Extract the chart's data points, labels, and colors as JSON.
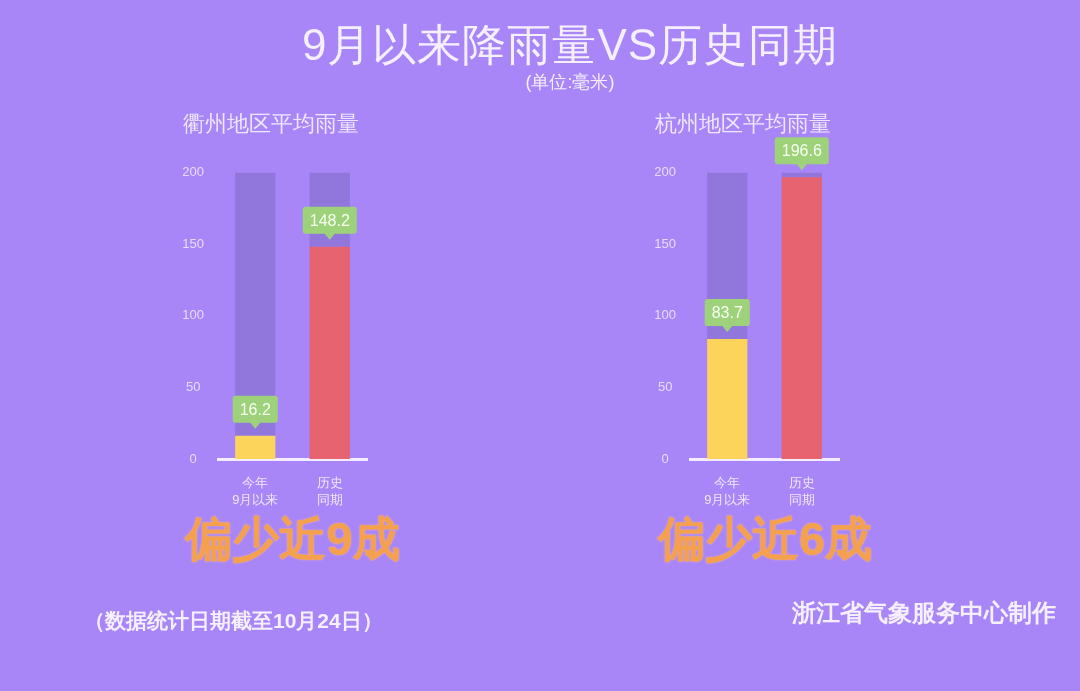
{
  "chart_data": [
    {
      "type": "other",
      "title": "9月以来降雨量VS历史同期",
      "subtitle": "(单位:毫米)"
    },
    {
      "type": "bar",
      "title": "衢州地区平均雨量",
      "categories": [
        "今年9月以来",
        "历史同期"
      ],
      "stacked": true,
      "series": [
        {
          "colors": [
            "#fcd35b",
            "#e6636f"
          ],
          "values": [
            16.2,
            148.2
          ],
          "value_labels": [
            "16.2",
            "148.2"
          ]
        },
        {
          "color": "#9176dc",
          "values": [
            183.8,
            51.8
          ]
        }
      ],
      "ylim": [
        0,
        200
      ],
      "yticks": [
        0,
        50,
        100,
        150,
        200
      ],
      "annotations": [
        "偏少近9成",
        "（数据统计日期截至10月24日）"
      ]
    },
    {
      "type": "bar",
      "title": "杭州地区平均雨量",
      "categories": [
        "今年9月以来",
        "历史同期"
      ],
      "stacked": true,
      "series": [
        {
          "colors": [
            "#fcd35b",
            "#e6636f"
          ],
          "values": [
            83.7,
            196.6
          ],
          "value_labels": [
            "83.7",
            "196.6"
          ]
        },
        {
          "color": "#9176dc",
          "values": [
            116.3,
            3.4
          ]
        }
      ],
      "ylim": [
        0,
        200
      ],
      "yticks": [
        0,
        50,
        100,
        150,
        200
      ],
      "annotations": [
        "偏少近6成",
        "浙江省气象服务中心制作"
      ]
    }
  ]
}
